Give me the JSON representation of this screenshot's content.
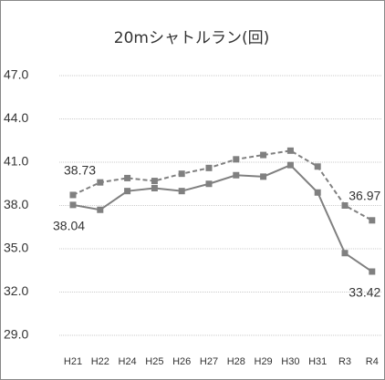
{
  "chart_data": {
    "type": "line",
    "title": "20mシャトルラン(回)",
    "categories": [
      "H21",
      "H22",
      "H24",
      "H25",
      "H26",
      "H27",
      "H28",
      "H29",
      "H30",
      "H31",
      "R3",
      "R4"
    ],
    "series": [
      {
        "color": "#808080",
        "dash": true,
        "values": [
          38.73,
          39.6,
          39.9,
          39.7,
          40.2,
          40.6,
          41.2,
          41.5,
          41.8,
          40.7,
          38.0,
          36.97
        ],
        "value_labels": [
          "38.73",
          null,
          null,
          null,
          null,
          null,
          null,
          null,
          null,
          null,
          null,
          "36.97"
        ]
      },
      {
        "color": "#808080",
        "dash": false,
        "values": [
          38.04,
          37.7,
          39.0,
          39.2,
          39.0,
          39.5,
          40.1,
          40.0,
          40.8,
          38.9,
          34.7,
          33.42
        ],
        "value_labels": [
          "38.04",
          null,
          null,
          null,
          null,
          null,
          null,
          null,
          null,
          null,
          null,
          "33.42"
        ]
      }
    ],
    "ylim": [
      29.0,
      47.0
    ],
    "yticks": [
      {
        "value": 29.0,
        "label": "29.0"
      },
      {
        "value": 32.0,
        "label": "32.0"
      },
      {
        "value": 35.0,
        "label": "35.0"
      },
      {
        "value": 38.0,
        "label": "38.0"
      },
      {
        "value": 41.0,
        "label": "41.0"
      },
      {
        "value": 44.0,
        "label": "44.0"
      },
      {
        "value": 47.0,
        "label": "47.0"
      }
    ],
    "grid": true
  }
}
